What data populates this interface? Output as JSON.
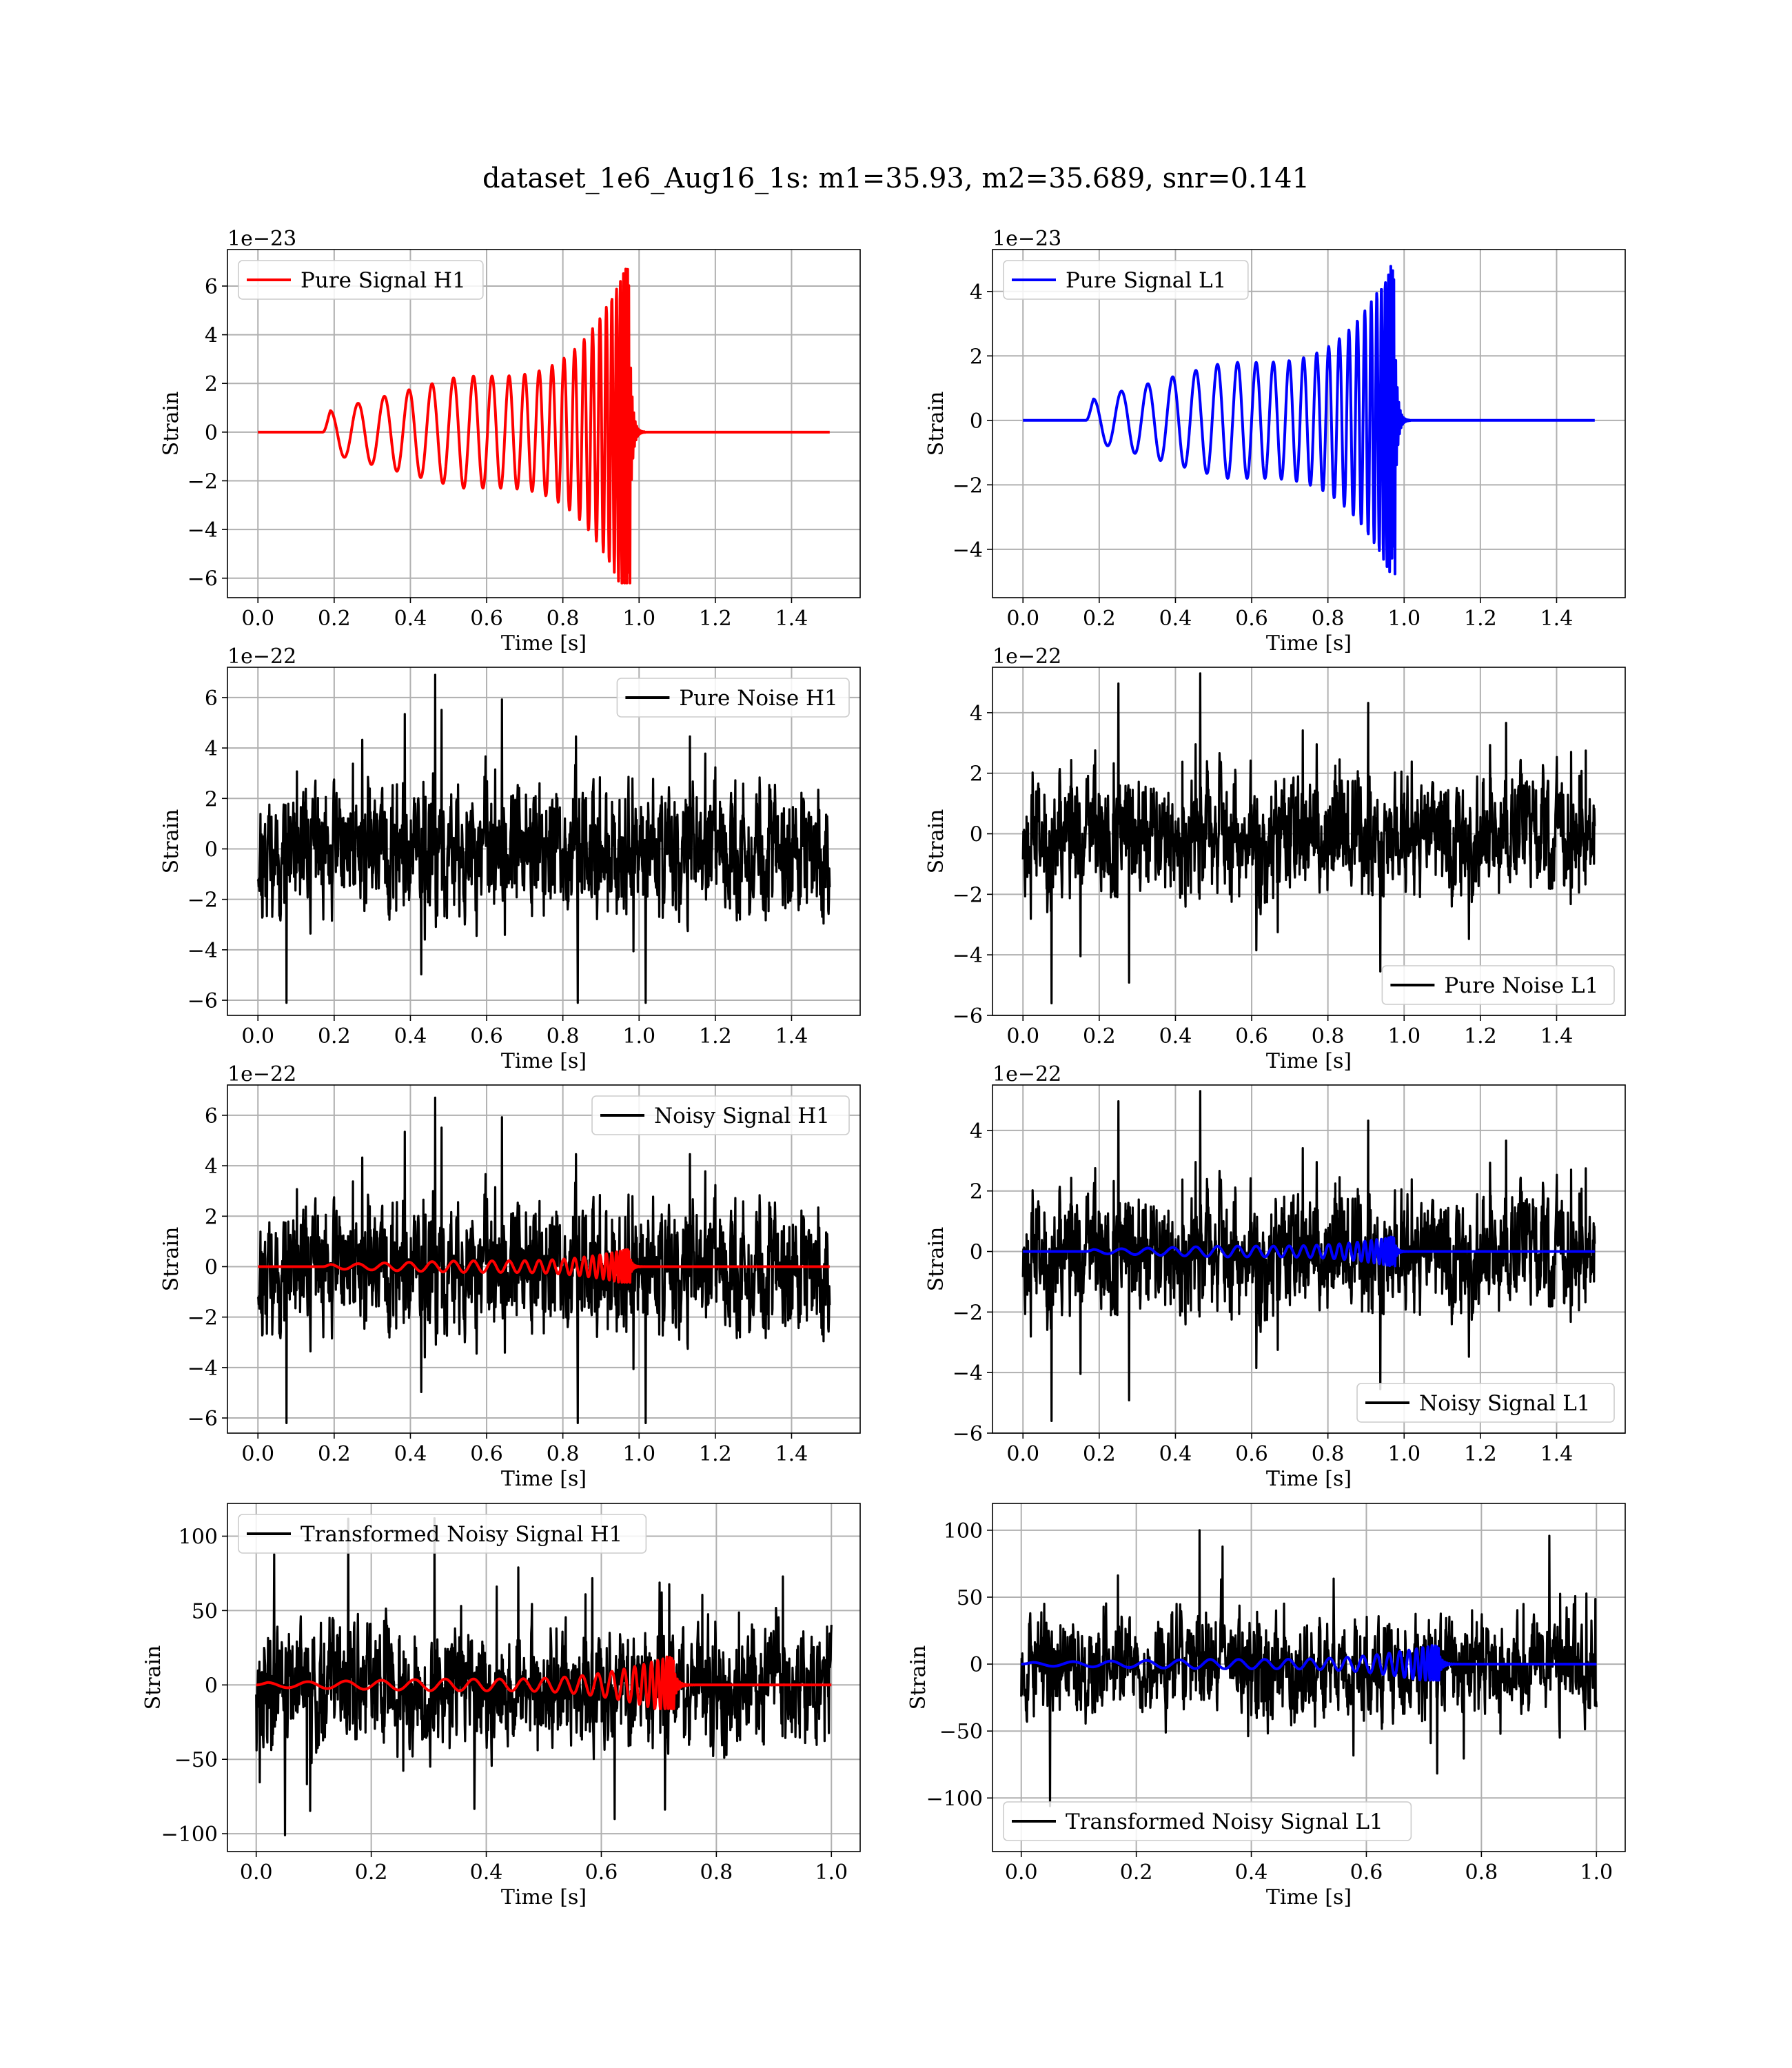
{
  "figure": {
    "title": "dataset_1e6_Aug16_1s: m1=35.93, m2=35.689, snr=0.141"
  },
  "colors": {
    "h1_signal": "#ff0000",
    "l1_signal": "#0000ff",
    "noise": "#000000",
    "grid": "#b0b0b0"
  },
  "chart_data": [
    {
      "type": "line",
      "legend": "Pure Signal H1",
      "legend_position": "upper-left",
      "xlabel": "Time [s]",
      "ylabel": "Strain",
      "offset_text": "1e−23",
      "xlim": [
        -0.08,
        1.58
      ],
      "ylim": [
        -6.8,
        7.5
      ],
      "xticks": [
        0.0,
        0.2,
        0.4,
        0.6,
        0.8,
        1.0,
        1.2,
        1.4
      ],
      "xtick_labels": [
        "0.0",
        "0.2",
        "0.4",
        "0.6",
        "0.8",
        "1.0",
        "1.2",
        "1.4"
      ],
      "yticks": [
        -6,
        -4,
        -2,
        0,
        2,
        4,
        6
      ],
      "ytick_labels": [
        "−6",
        "−4",
        "−2",
        "0",
        "2",
        "4",
        "6"
      ],
      "grid": true,
      "series": [
        {
          "name": "Pure Signal H1",
          "color": "#ff0000",
          "kind": "chirp",
          "x_range": [
            0.0,
            1.5
          ],
          "t_start": 0.17,
          "t_merge": 0.965,
          "amp_early": 0.8,
          "amp_mid": 2.3,
          "amp_peak": 6.8,
          "amp_trough": -6.2,
          "n_cycles": 28
        }
      ]
    },
    {
      "type": "line",
      "legend": "Pure Signal L1",
      "legend_position": "upper-left",
      "xlabel": "Time [s]",
      "ylabel": "Strain",
      "offset_text": "1e−23",
      "xlim": [
        -0.08,
        1.58
      ],
      "ylim": [
        -5.5,
        5.3
      ],
      "xticks": [
        0.0,
        0.2,
        0.4,
        0.6,
        0.8,
        1.0,
        1.2,
        1.4
      ],
      "xtick_labels": [
        "0.0",
        "0.2",
        "0.4",
        "0.6",
        "0.8",
        "1.0",
        "1.2",
        "1.4"
      ],
      "yticks": [
        -4,
        -2,
        0,
        2,
        4
      ],
      "ytick_labels": [
        "−4",
        "−2",
        "0",
        "2",
        "4"
      ],
      "grid": true,
      "series": [
        {
          "name": "Pure Signal L1",
          "color": "#0000ff",
          "kind": "chirp",
          "x_range": [
            0.0,
            1.5
          ],
          "t_start": 0.165,
          "t_merge": 0.965,
          "amp_early": 0.6,
          "amp_mid": 1.8,
          "amp_peak": 4.8,
          "amp_trough": -5.0,
          "n_cycles": 28
        }
      ]
    },
    {
      "type": "line",
      "legend": "Pure Noise H1",
      "legend_position": "upper-right",
      "xlabel": "Time [s]",
      "ylabel": "Strain",
      "offset_text": "1e−22",
      "xlim": [
        -0.08,
        1.58
      ],
      "ylim": [
        -6.6,
        7.2
      ],
      "xticks": [
        0.0,
        0.2,
        0.4,
        0.6,
        0.8,
        1.0,
        1.2,
        1.4
      ],
      "xtick_labels": [
        "0.0",
        "0.2",
        "0.4",
        "0.6",
        "0.8",
        "1.0",
        "1.2",
        "1.4"
      ],
      "yticks": [
        -6,
        -4,
        -2,
        0,
        2,
        4,
        6
      ],
      "ytick_labels": [
        "−6",
        "−4",
        "−2",
        "0",
        "2",
        "4",
        "6"
      ],
      "grid": true,
      "series": [
        {
          "name": "Pure Noise H1",
          "color": "#000000",
          "kind": "noise",
          "x_range": [
            0.0,
            1.5
          ],
          "max": 6.9,
          "min": -6.1,
          "typical": 2.6,
          "seed": 11
        }
      ]
    },
    {
      "type": "line",
      "legend": "Pure Noise L1",
      "legend_position": "lower-right",
      "xlabel": "Time [s]",
      "ylabel": "Strain",
      "offset_text": "1e−22",
      "xlim": [
        -0.08,
        1.58
      ],
      "ylim": [
        -6.0,
        5.5
      ],
      "xticks": [
        0.0,
        0.2,
        0.4,
        0.6,
        0.8,
        1.0,
        1.2,
        1.4
      ],
      "xtick_labels": [
        "0.0",
        "0.2",
        "0.4",
        "0.6",
        "0.8",
        "1.0",
        "1.2",
        "1.4"
      ],
      "yticks": [
        -6,
        -4,
        -2,
        0,
        2,
        4
      ],
      "ytick_labels": [
        "−6",
        "−4",
        "−2",
        "0",
        "2",
        "4"
      ],
      "grid": true,
      "series": [
        {
          "name": "Pure Noise L1",
          "color": "#000000",
          "kind": "noise",
          "x_range": [
            0.0,
            1.5
          ],
          "max": 5.3,
          "min": -5.6,
          "typical": 2.1,
          "seed": 23
        }
      ]
    },
    {
      "type": "line",
      "legend": "Noisy Signal H1",
      "legend_position": "upper-right",
      "xlabel": "Time [s]",
      "ylabel": "Strain",
      "offset_text": "1e−22",
      "xlim": [
        -0.08,
        1.58
      ],
      "ylim": [
        -6.6,
        7.2
      ],
      "xticks": [
        0.0,
        0.2,
        0.4,
        0.6,
        0.8,
        1.0,
        1.2,
        1.4
      ],
      "xtick_labels": [
        "0.0",
        "0.2",
        "0.4",
        "0.6",
        "0.8",
        "1.0",
        "1.2",
        "1.4"
      ],
      "yticks": [
        -6,
        -4,
        -2,
        0,
        2,
        4,
        6
      ],
      "ytick_labels": [
        "−6",
        "−4",
        "−2",
        "0",
        "2",
        "4",
        "6"
      ],
      "grid": true,
      "series": [
        {
          "name": "Noisy Signal H1",
          "color": "#000000",
          "kind": "noise",
          "x_range": [
            0.0,
            1.5
          ],
          "max": 6.7,
          "min": -6.2,
          "typical": 2.6,
          "seed": 11
        },
        {
          "name": "",
          "color": "#ff0000",
          "kind": "chirp",
          "x_range": [
            0.0,
            1.5
          ],
          "t_start": 0.17,
          "t_merge": 0.965,
          "amp_early": 0.08,
          "amp_mid": 0.23,
          "amp_peak": 0.68,
          "amp_trough": -0.62,
          "n_cycles": 28
        }
      ]
    },
    {
      "type": "line",
      "legend": "Noisy Signal L1",
      "legend_position": "lower-right",
      "xlabel": "Time [s]",
      "ylabel": "Strain",
      "offset_text": "1e−22",
      "xlim": [
        -0.08,
        1.58
      ],
      "ylim": [
        -6.0,
        5.5
      ],
      "xticks": [
        0.0,
        0.2,
        0.4,
        0.6,
        0.8,
        1.0,
        1.2,
        1.4
      ],
      "xtick_labels": [
        "0.0",
        "0.2",
        "0.4",
        "0.6",
        "0.8",
        "1.0",
        "1.2",
        "1.4"
      ],
      "yticks": [
        -6,
        -4,
        -2,
        0,
        2,
        4
      ],
      "ytick_labels": [
        "−6",
        "−4",
        "−2",
        "0",
        "2",
        "4"
      ],
      "grid": true,
      "series": [
        {
          "name": "Noisy Signal L1",
          "color": "#000000",
          "kind": "noise",
          "x_range": [
            0.0,
            1.5
          ],
          "max": 5.3,
          "min": -5.6,
          "typical": 2.1,
          "seed": 23
        },
        {
          "name": "",
          "color": "#0000ff",
          "kind": "chirp",
          "x_range": [
            0.0,
            1.5
          ],
          "t_start": 0.165,
          "t_merge": 0.965,
          "amp_early": 0.06,
          "amp_mid": 0.18,
          "amp_peak": 0.48,
          "amp_trough": -0.5,
          "n_cycles": 28
        }
      ]
    },
    {
      "type": "line",
      "legend": "Transformed Noisy Signal H1",
      "legend_position": "upper-left",
      "xlabel": "Time [s]",
      "ylabel": "Strain",
      "offset_text": "",
      "xlim": [
        -0.05,
        1.05
      ],
      "ylim": [
        -112,
        122
      ],
      "xticks": [
        0.0,
        0.2,
        0.4,
        0.6,
        0.8,
        1.0
      ],
      "xtick_labels": [
        "0.0",
        "0.2",
        "0.4",
        "0.6",
        "0.8",
        "1.0"
      ],
      "yticks": [
        -100,
        -50,
        0,
        50,
        100
      ],
      "ytick_labels": [
        "−100",
        "−50",
        "0",
        "50",
        "100"
      ],
      "grid": true,
      "series": [
        {
          "name": "Transformed Noisy Signal H1",
          "color": "#000000",
          "kind": "noise",
          "x_range": [
            0.0,
            1.0
          ],
          "max": 112,
          "min": -101,
          "typical": 42,
          "seed": 37
        },
        {
          "name": "",
          "color": "#ff0000",
          "kind": "chirp",
          "x_range": [
            0.0,
            1.0
          ],
          "t_start": 0.0,
          "t_merge": 0.715,
          "amp_early": 1.5,
          "amp_mid": 4,
          "amp_peak": 19,
          "amp_trough": -16,
          "n_cycles": 26
        }
      ]
    },
    {
      "type": "line",
      "legend": "Transformed Noisy Signal L1",
      "legend_position": "lower-left",
      "xlabel": "Time [s]",
      "ylabel": "Strain",
      "offset_text": "",
      "xlim": [
        -0.05,
        1.05
      ],
      "ylim": [
        -140,
        120
      ],
      "xticks": [
        0.0,
        0.2,
        0.4,
        0.6,
        0.8,
        1.0
      ],
      "xtick_labels": [
        "0.0",
        "0.2",
        "0.4",
        "0.6",
        "0.8",
        "1.0"
      ],
      "yticks": [
        -100,
        -50,
        0,
        50,
        100
      ],
      "ytick_labels": [
        "−100",
        "−50",
        "0",
        "50",
        "100"
      ],
      "grid": true,
      "series": [
        {
          "name": "Transformed Noisy Signal L1",
          "color": "#000000",
          "kind": "noise",
          "x_range": [
            0.0,
            1.0
          ],
          "max": 100,
          "min": -106,
          "typical": 38,
          "seed": 53
        },
        {
          "name": "",
          "color": "#0000ff",
          "kind": "chirp",
          "x_range": [
            0.0,
            1.0
          ],
          "t_start": 0.0,
          "t_merge": 0.715,
          "amp_early": 1.2,
          "amp_mid": 3.5,
          "amp_peak": 14,
          "amp_trough": -12,
          "n_cycles": 26
        }
      ]
    }
  ]
}
